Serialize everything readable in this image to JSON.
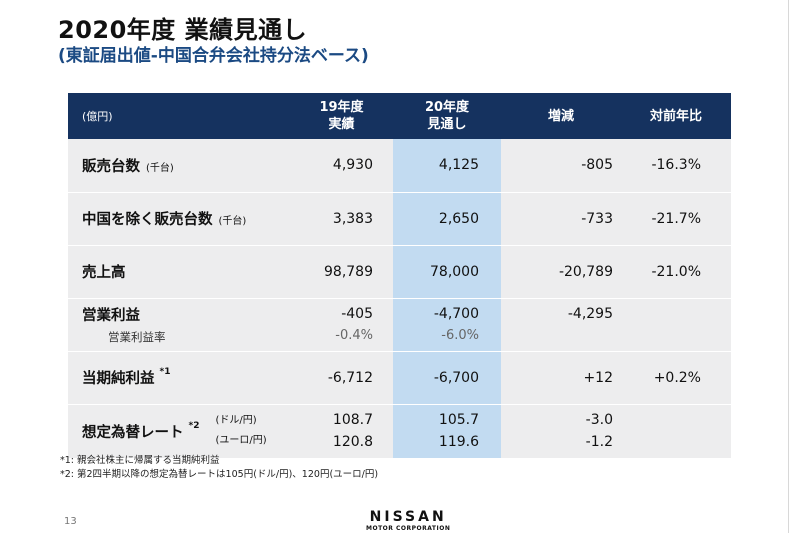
{
  "slide": {
    "title": "2020年度 業績見通し",
    "subtitle": "(東証届出値-中国合弁会社持分法ベース)",
    "page_number": "13"
  },
  "table": {
    "header": {
      "label": "(億円)",
      "fy19_line1": "19年度",
      "fy19_line2": "実績",
      "fy20_line1": "20年度",
      "fy20_line2": "見通し",
      "change": "増減",
      "yoy": "対前年比"
    },
    "rows": [
      {
        "label": "販売台数",
        "unit": "(千台)",
        "fy19": "4,930",
        "fy20": "4,125",
        "change": "-805",
        "yoy": "-16.3%"
      },
      {
        "label": "中国を除く販売台数",
        "unit": "(千台)",
        "fy19": "3,383",
        "fy20": "2,650",
        "change": "-733",
        "yoy": "-21.7%"
      },
      {
        "label": "売上高",
        "fy19": "98,789",
        "fy20": "78,000",
        "change": "-20,789",
        "yoy": "-21.0%"
      },
      {
        "label": "営業利益",
        "sub_label": "営業利益率",
        "fy19": "-405",
        "fy19_sub": "-0.4%",
        "fy20": "-4,700",
        "fy20_sub": "-6.0%",
        "change": "-4,295",
        "yoy": ""
      },
      {
        "label": "当期純利益",
        "note_mark": "*1",
        "fy19": "-6,712",
        "fy20": "-6,700",
        "change": "+12",
        "yoy": "+0.2%"
      },
      {
        "label": "想定為替レート",
        "note_mark": "*2",
        "unit_1": "(ドル/円)",
        "unit_2": "(ユーロ/円)",
        "fy19_1": "108.7",
        "fy19_2": "120.8",
        "fy20_1": "105.7",
        "fy20_2": "119.6",
        "change_1": "-3.0",
        "change_2": "-1.2",
        "yoy": ""
      }
    ]
  },
  "footnotes": [
    "*1: 親会社株主に帰属する当期純利益",
    "*2: 第2四半期以降の想定為替レートは105円(ドル/円)、120円(ユーロ/円)"
  ],
  "logo": {
    "brand": "NISSAN",
    "corp": "MOTOR CORPORATION"
  },
  "colors": {
    "header_bg": "#15325f",
    "highlight_col": "#c2dbf1",
    "row_bg": "#ededee",
    "subtitle": "#1b4a83"
  }
}
